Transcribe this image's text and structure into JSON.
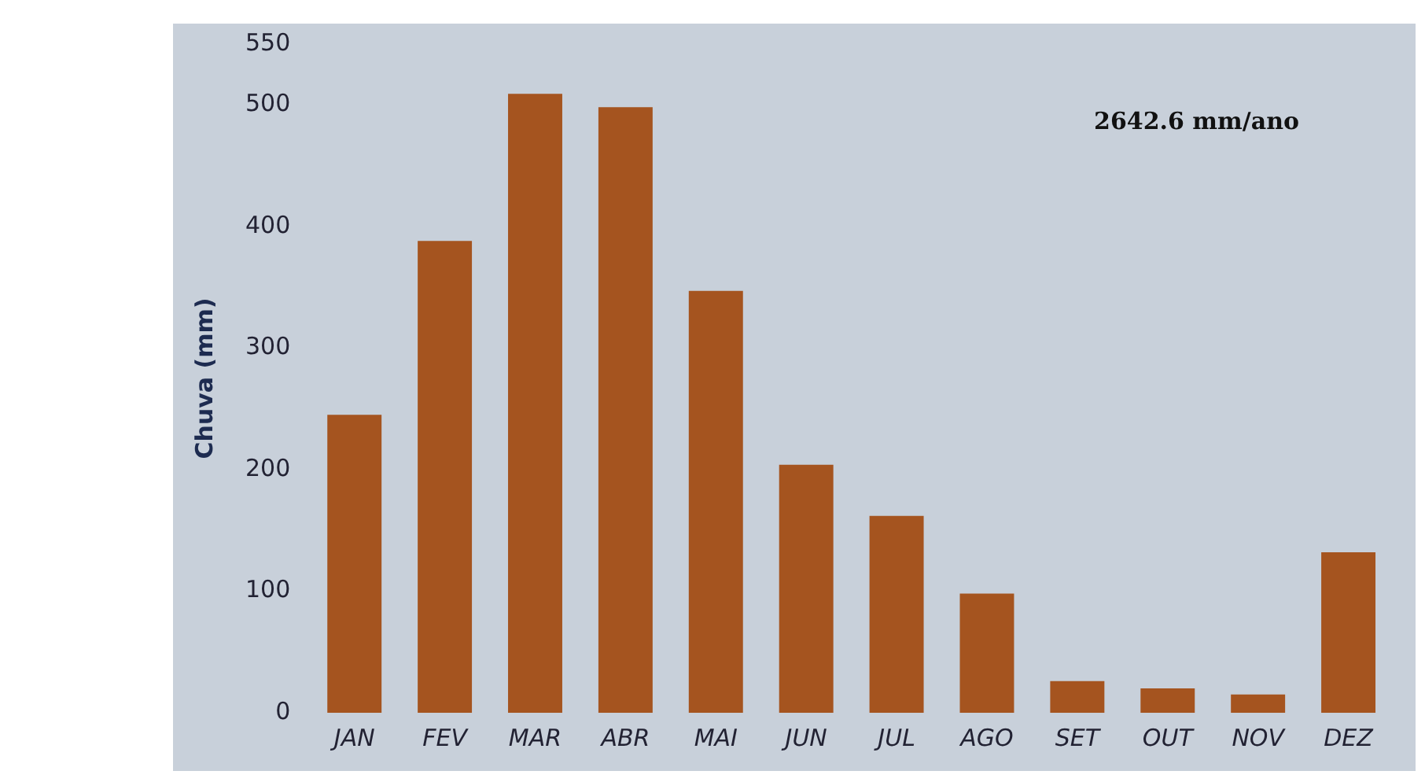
{
  "chart_data": {
    "type": "bar",
    "ylabel": "Chuva (mm)",
    "categories": [
      "JAN",
      "FEV",
      "MAR",
      "ABR",
      "MAI",
      "JUN",
      "JUL",
      "AGO",
      "SET",
      "OUT",
      "NOV",
      "DEZ"
    ],
    "values": [
      245,
      388,
      509,
      498,
      347,
      204,
      162,
      98,
      26,
      20,
      15,
      132
    ],
    "color": "#a5541f",
    "ylim": [
      0,
      550
    ],
    "yticks": [
      0,
      100,
      200,
      300,
      400,
      500,
      550
    ],
    "grid": false,
    "legend": false,
    "annotations": [
      "2642.6 mm/ano"
    ]
  }
}
